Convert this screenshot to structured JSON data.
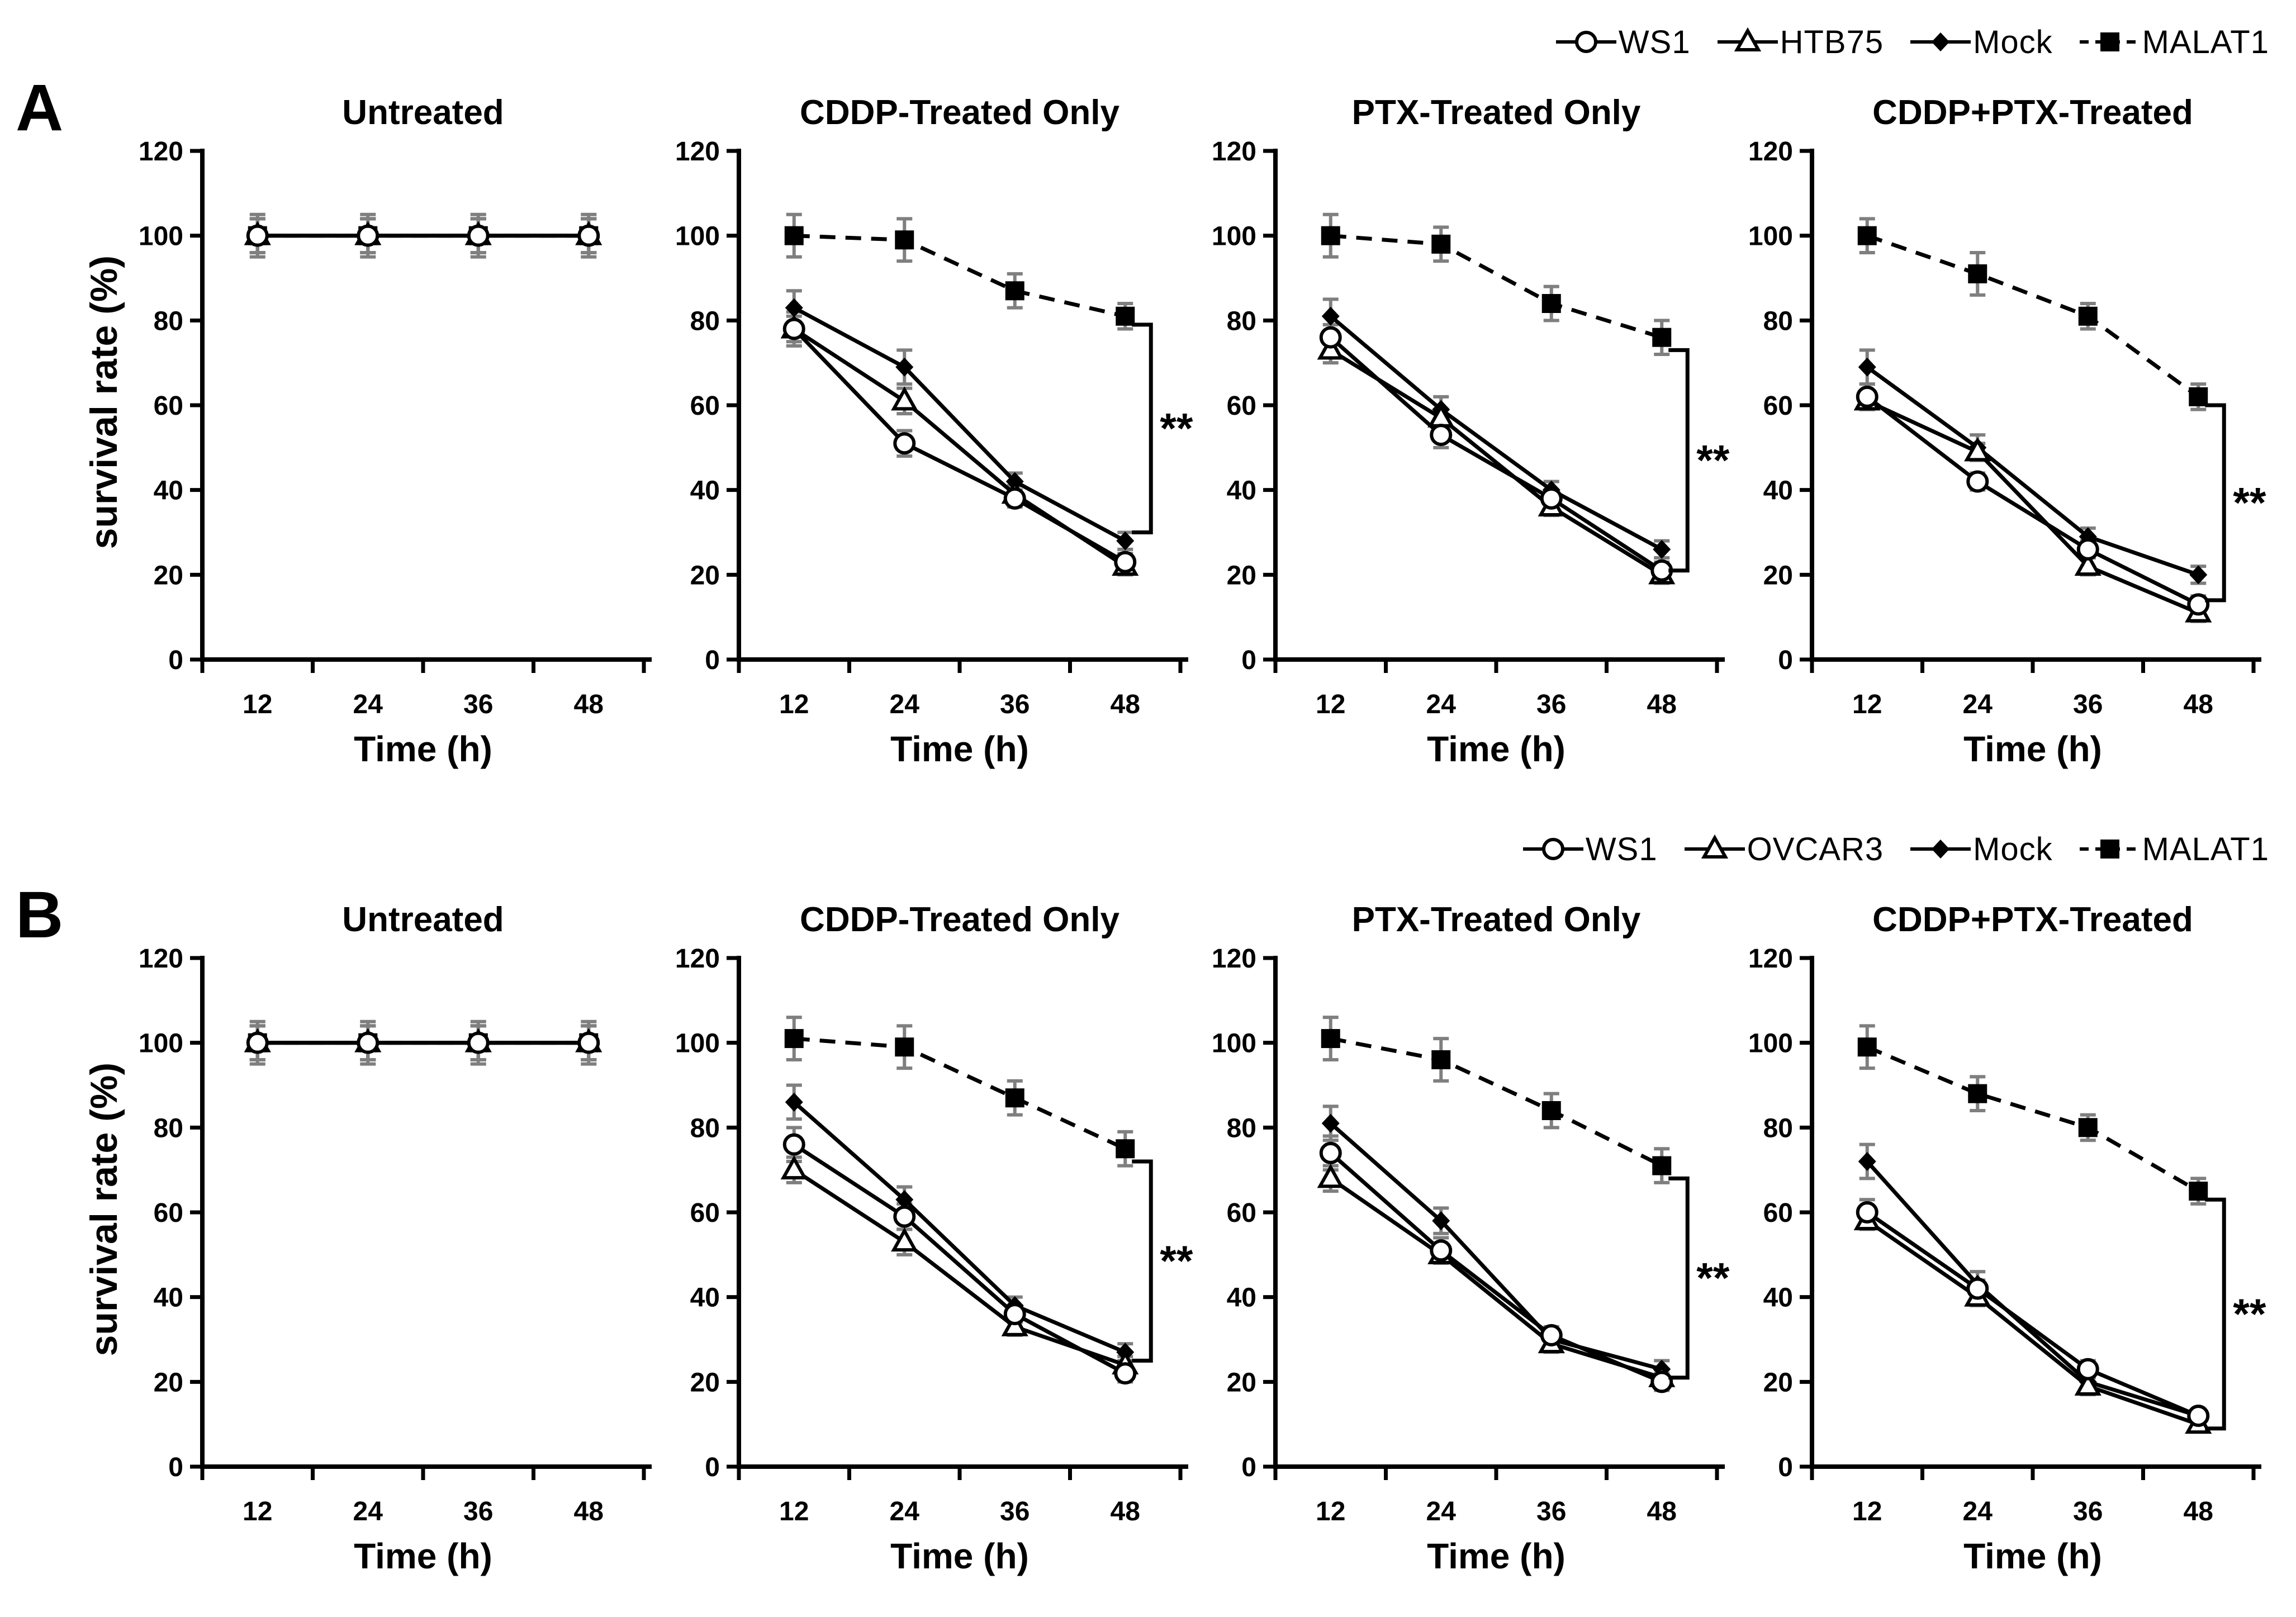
{
  "figure": {
    "background": "#ffffff",
    "ink_color": "#000000",
    "error_bar_color": "#7f7f7f",
    "panels": [
      {
        "label": "A",
        "ylabel": "survival rate (%)",
        "legend": [
          {
            "name": "WS1",
            "marker": "open-circle",
            "line": "solid"
          },
          {
            "name": "HTB75",
            "marker": "open-triangle",
            "line": "solid"
          },
          {
            "name": "Mock",
            "marker": "filled-diamond",
            "line": "solid"
          },
          {
            "name": "MALAT1",
            "marker": "filled-square",
            "line": "dashed"
          }
        ]
      },
      {
        "label": "B",
        "ylabel": "survival rate (%)",
        "legend": [
          {
            "name": "WS1",
            "marker": "open-circle",
            "line": "solid"
          },
          {
            "name": "OVCAR3",
            "marker": "open-triangle",
            "line": "solid"
          },
          {
            "name": "Mock",
            "marker": "filled-diamond",
            "line": "solid"
          },
          {
            "name": "MALAT1",
            "marker": "filled-square",
            "line": "dashed"
          }
        ]
      }
    ]
  },
  "chart_data": [
    {
      "panel": "A",
      "type": "line",
      "title": "Untreated",
      "xlabel": "Time (h)",
      "ylabel": "survival rate (%)",
      "x": [
        12,
        24,
        36,
        48
      ],
      "ylim": [
        0,
        120
      ],
      "yticks": [
        0,
        20,
        40,
        60,
        80,
        100,
        120
      ],
      "series": [
        {
          "name": "WS1",
          "marker": "open-circle",
          "line": "solid",
          "values": [
            100,
            100,
            100,
            100
          ],
          "err": [
            4,
            4,
            4,
            4
          ]
        },
        {
          "name": "HTB75",
          "marker": "open-triangle",
          "line": "solid",
          "values": [
            100,
            100,
            100,
            100
          ],
          "err": [
            4,
            4,
            4,
            4
          ]
        },
        {
          "name": "Mock",
          "marker": "filled-diamond",
          "line": "solid",
          "values": [
            100,
            100,
            100,
            100
          ],
          "err": [
            4,
            4,
            4,
            4
          ]
        },
        {
          "name": "MALAT1",
          "marker": "filled-square",
          "line": "dashed",
          "values": [
            100,
            100,
            100,
            100
          ],
          "err": [
            5,
            5,
            5,
            5
          ]
        }
      ],
      "significance": null
    },
    {
      "panel": "A",
      "type": "line",
      "title": "CDDP-Treated Only",
      "xlabel": "Time (h)",
      "ylabel": "survival rate (%)",
      "x": [
        12,
        24,
        36,
        48
      ],
      "ylim": [
        0,
        120
      ],
      "yticks": [
        0,
        20,
        40,
        60,
        80,
        100,
        120
      ],
      "series": [
        {
          "name": "WS1",
          "marker": "open-circle",
          "line": "solid",
          "values": [
            78,
            51,
            38,
            23
          ],
          "err": [
            3,
            3,
            2,
            2
          ]
        },
        {
          "name": "HTB75",
          "marker": "open-triangle",
          "line": "solid",
          "values": [
            78,
            61,
            39,
            22
          ],
          "err": [
            4,
            3,
            2,
            2
          ]
        },
        {
          "name": "Mock",
          "marker": "filled-diamond",
          "line": "solid",
          "values": [
            83,
            69,
            42,
            28
          ],
          "err": [
            4,
            4,
            2,
            2
          ]
        },
        {
          "name": "MALAT1",
          "marker": "filled-square",
          "line": "dashed",
          "values": [
            100,
            99,
            87,
            81
          ],
          "err": [
            5,
            5,
            4,
            3
          ]
        }
      ],
      "significance": {
        "label": "**",
        "x": 48,
        "y_top": 79,
        "y_bottom": 30
      }
    },
    {
      "panel": "A",
      "type": "line",
      "title": "PTX-Treated Only",
      "xlabel": "Time (h)",
      "ylabel": "survival rate (%)",
      "x": [
        12,
        24,
        36,
        48
      ],
      "ylim": [
        0,
        120
      ],
      "yticks": [
        0,
        20,
        40,
        60,
        80,
        100,
        120
      ],
      "series": [
        {
          "name": "WS1",
          "marker": "open-circle",
          "line": "solid",
          "values": [
            76,
            53,
            38,
            21
          ],
          "err": [
            3,
            3,
            2,
            2
          ]
        },
        {
          "name": "HTB75",
          "marker": "open-triangle",
          "line": "solid",
          "values": [
            73,
            57,
            36,
            20
          ],
          "err": [
            3,
            2,
            2,
            2
          ]
        },
        {
          "name": "Mock",
          "marker": "filled-diamond",
          "line": "solid",
          "values": [
            81,
            59,
            40,
            26
          ],
          "err": [
            4,
            3,
            2,
            2
          ]
        },
        {
          "name": "MALAT1",
          "marker": "filled-square",
          "line": "dashed",
          "values": [
            100,
            98,
            84,
            76
          ],
          "err": [
            5,
            4,
            4,
            4
          ]
        }
      ],
      "significance": {
        "label": "**",
        "x": 48,
        "y_top": 73,
        "y_bottom": 21
      }
    },
    {
      "panel": "A",
      "type": "line",
      "title": "CDDP+PTX-Treated",
      "xlabel": "Time (h)",
      "ylabel": "survival rate (%)",
      "x": [
        12,
        24,
        36,
        48
      ],
      "ylim": [
        0,
        120
      ],
      "yticks": [
        0,
        20,
        40,
        60,
        80,
        100,
        120
      ],
      "series": [
        {
          "name": "WS1",
          "marker": "open-circle",
          "line": "solid",
          "values": [
            62,
            42,
            26,
            13
          ],
          "err": [
            3,
            2,
            2,
            2
          ]
        },
        {
          "name": "HTB75",
          "marker": "open-triangle",
          "line": "solid",
          "values": [
            61,
            49,
            22,
            11
          ],
          "err": [
            2,
            2,
            2,
            2
          ]
        },
        {
          "name": "Mock",
          "marker": "filled-diamond",
          "line": "solid",
          "values": [
            69,
            50,
            29,
            20
          ],
          "err": [
            4,
            3,
            2,
            2
          ]
        },
        {
          "name": "MALAT1",
          "marker": "filled-square",
          "line": "dashed",
          "values": [
            100,
            91,
            81,
            62
          ],
          "err": [
            4,
            5,
            3,
            3
          ]
        }
      ],
      "significance": {
        "label": "**",
        "x": 48,
        "y_top": 60,
        "y_bottom": 14
      }
    },
    {
      "panel": "B",
      "type": "line",
      "title": "Untreated",
      "xlabel": "Time (h)",
      "ylabel": "survival rate (%)",
      "x": [
        12,
        24,
        36,
        48
      ],
      "ylim": [
        0,
        120
      ],
      "yticks": [
        0,
        20,
        40,
        60,
        80,
        100,
        120
      ],
      "series": [
        {
          "name": "WS1",
          "marker": "open-circle",
          "line": "solid",
          "values": [
            100,
            100,
            100,
            100
          ],
          "err": [
            4,
            4,
            4,
            4
          ]
        },
        {
          "name": "OVCAR3",
          "marker": "open-triangle",
          "line": "solid",
          "values": [
            100,
            100,
            100,
            100
          ],
          "err": [
            4,
            4,
            4,
            4
          ]
        },
        {
          "name": "Mock",
          "marker": "filled-diamond",
          "line": "solid",
          "values": [
            100,
            100,
            100,
            100
          ],
          "err": [
            4,
            4,
            4,
            4
          ]
        },
        {
          "name": "MALAT1",
          "marker": "filled-square",
          "line": "dashed",
          "values": [
            100,
            100,
            100,
            100
          ],
          "err": [
            5,
            5,
            5,
            5
          ]
        }
      ],
      "significance": null
    },
    {
      "panel": "B",
      "type": "line",
      "title": "CDDP-Treated Only",
      "xlabel": "Time (h)",
      "ylabel": "survival rate (%)",
      "x": [
        12,
        24,
        36,
        48
      ],
      "ylim": [
        0,
        120
      ],
      "yticks": [
        0,
        20,
        40,
        60,
        80,
        100,
        120
      ],
      "series": [
        {
          "name": "WS1",
          "marker": "open-circle",
          "line": "solid",
          "values": [
            76,
            59,
            36,
            22
          ],
          "err": [
            4,
            3,
            2,
            2
          ]
        },
        {
          "name": "OVCAR3",
          "marker": "open-triangle",
          "line": "solid",
          "values": [
            70,
            53,
            33,
            24
          ],
          "err": [
            3,
            3,
            2,
            2
          ]
        },
        {
          "name": "Mock",
          "marker": "filled-diamond",
          "line": "solid",
          "values": [
            86,
            63,
            38,
            27
          ],
          "err": [
            4,
            3,
            2,
            2
          ]
        },
        {
          "name": "MALAT1",
          "marker": "filled-square",
          "line": "dashed",
          "values": [
            101,
            99,
            87,
            75
          ],
          "err": [
            5,
            5,
            4,
            4
          ]
        }
      ],
      "significance": {
        "label": "**",
        "x": 48,
        "y_top": 72,
        "y_bottom": 25
      }
    },
    {
      "panel": "B",
      "type": "line",
      "title": "PTX-Treated Only",
      "xlabel": "Time (h)",
      "ylabel": "survival rate (%)",
      "x": [
        12,
        24,
        36,
        48
      ],
      "ylim": [
        0,
        120
      ],
      "yticks": [
        0,
        20,
        40,
        60,
        80,
        100,
        120
      ],
      "series": [
        {
          "name": "WS1",
          "marker": "open-circle",
          "line": "solid",
          "values": [
            74,
            51,
            31,
            20
          ],
          "err": [
            4,
            3,
            2,
            2
          ]
        },
        {
          "name": "OVCAR3",
          "marker": "open-triangle",
          "line": "solid",
          "values": [
            68,
            50,
            29,
            21
          ],
          "err": [
            3,
            2,
            2,
            2
          ]
        },
        {
          "name": "Mock",
          "marker": "filled-diamond",
          "line": "solid",
          "values": [
            81,
            58,
            30,
            23
          ],
          "err": [
            4,
            3,
            2,
            2
          ]
        },
        {
          "name": "MALAT1",
          "marker": "filled-square",
          "line": "dashed",
          "values": [
            101,
            96,
            84,
            71
          ],
          "err": [
            5,
            5,
            4,
            4
          ]
        }
      ],
      "significance": {
        "label": "**",
        "x": 48,
        "y_top": 68,
        "y_bottom": 21
      }
    },
    {
      "panel": "B",
      "type": "line",
      "title": "CDDP+PTX-Treated",
      "xlabel": "Time (h)",
      "ylabel": "survival rate (%)",
      "x": [
        12,
        24,
        36,
        48
      ],
      "ylim": [
        0,
        120
      ],
      "yticks": [
        0,
        20,
        40,
        60,
        80,
        100,
        120
      ],
      "series": [
        {
          "name": "WS1",
          "marker": "open-circle",
          "line": "solid",
          "values": [
            60,
            42,
            23,
            12
          ],
          "err": [
            3,
            2,
            2,
            1
          ]
        },
        {
          "name": "OVCAR3",
          "marker": "open-triangle",
          "line": "solid",
          "values": [
            58,
            40,
            19,
            10
          ],
          "err": [
            2,
            2,
            2,
            1
          ]
        },
        {
          "name": "Mock",
          "marker": "filled-diamond",
          "line": "solid",
          "values": [
            72,
            43,
            20,
            12
          ],
          "err": [
            4,
            3,
            2,
            1
          ]
        },
        {
          "name": "MALAT1",
          "marker": "filled-square",
          "line": "dashed",
          "values": [
            99,
            88,
            80,
            65
          ],
          "err": [
            5,
            4,
            3,
            3
          ]
        }
      ],
      "significance": {
        "label": "**",
        "x": 48,
        "y_top": 63,
        "y_bottom": 9
      }
    }
  ]
}
